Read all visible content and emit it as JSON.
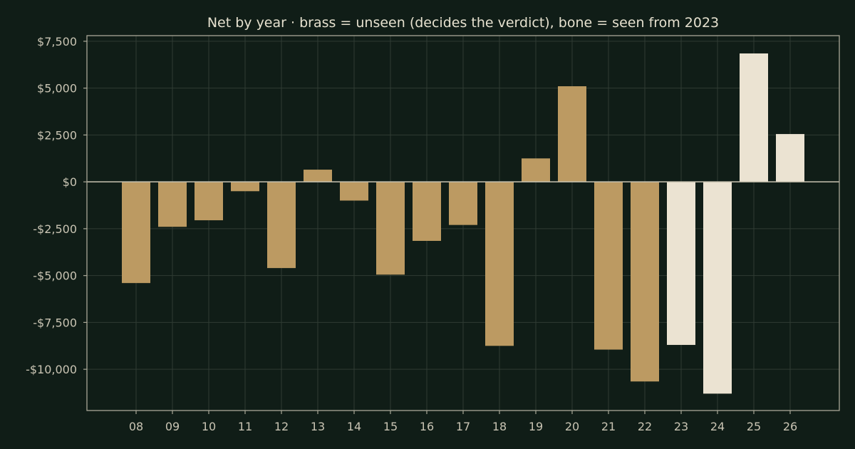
{
  "chart_data": {
    "type": "bar",
    "title": "Net by year  ·  brass = unseen (decides the verdict), bone = seen from 2023",
    "xlabel": "",
    "ylabel": "",
    "categories": [
      "08",
      "09",
      "10",
      "11",
      "12",
      "13",
      "14",
      "15",
      "16",
      "17",
      "18",
      "19",
      "20",
      "21",
      "22",
      "23",
      "24",
      "25",
      "26"
    ],
    "values": [
      -5400,
      -2400,
      -2050,
      -500,
      -4600,
      650,
      -1000,
      -4950,
      -3150,
      -2300,
      -8750,
      1250,
      5100,
      -8950,
      -10650,
      -8700,
      -11300,
      6850,
      2550
    ],
    "bar_groups": [
      "unseen",
      "unseen",
      "unseen",
      "unseen",
      "unseen",
      "unseen",
      "unseen",
      "unseen",
      "unseen",
      "unseen",
      "unseen",
      "unseen",
      "unseen",
      "unseen",
      "unseen",
      "seen",
      "seen",
      "seen",
      "seen"
    ],
    "colors": {
      "unseen": "#bc9a62",
      "seen": "#ebe3d2"
    },
    "ylim": [
      -12200,
      7800
    ],
    "yticks": [
      7500,
      5000,
      2500,
      0,
      -2500,
      -5000,
      -7500,
      -10000
    ],
    "ytick_labels": [
      "$7,500",
      "$5,000",
      "$2,500",
      "$0",
      "-$2,500",
      "-$5,000",
      "-$7,500",
      "-$10,000"
    ],
    "grid": true,
    "legend": "none"
  }
}
